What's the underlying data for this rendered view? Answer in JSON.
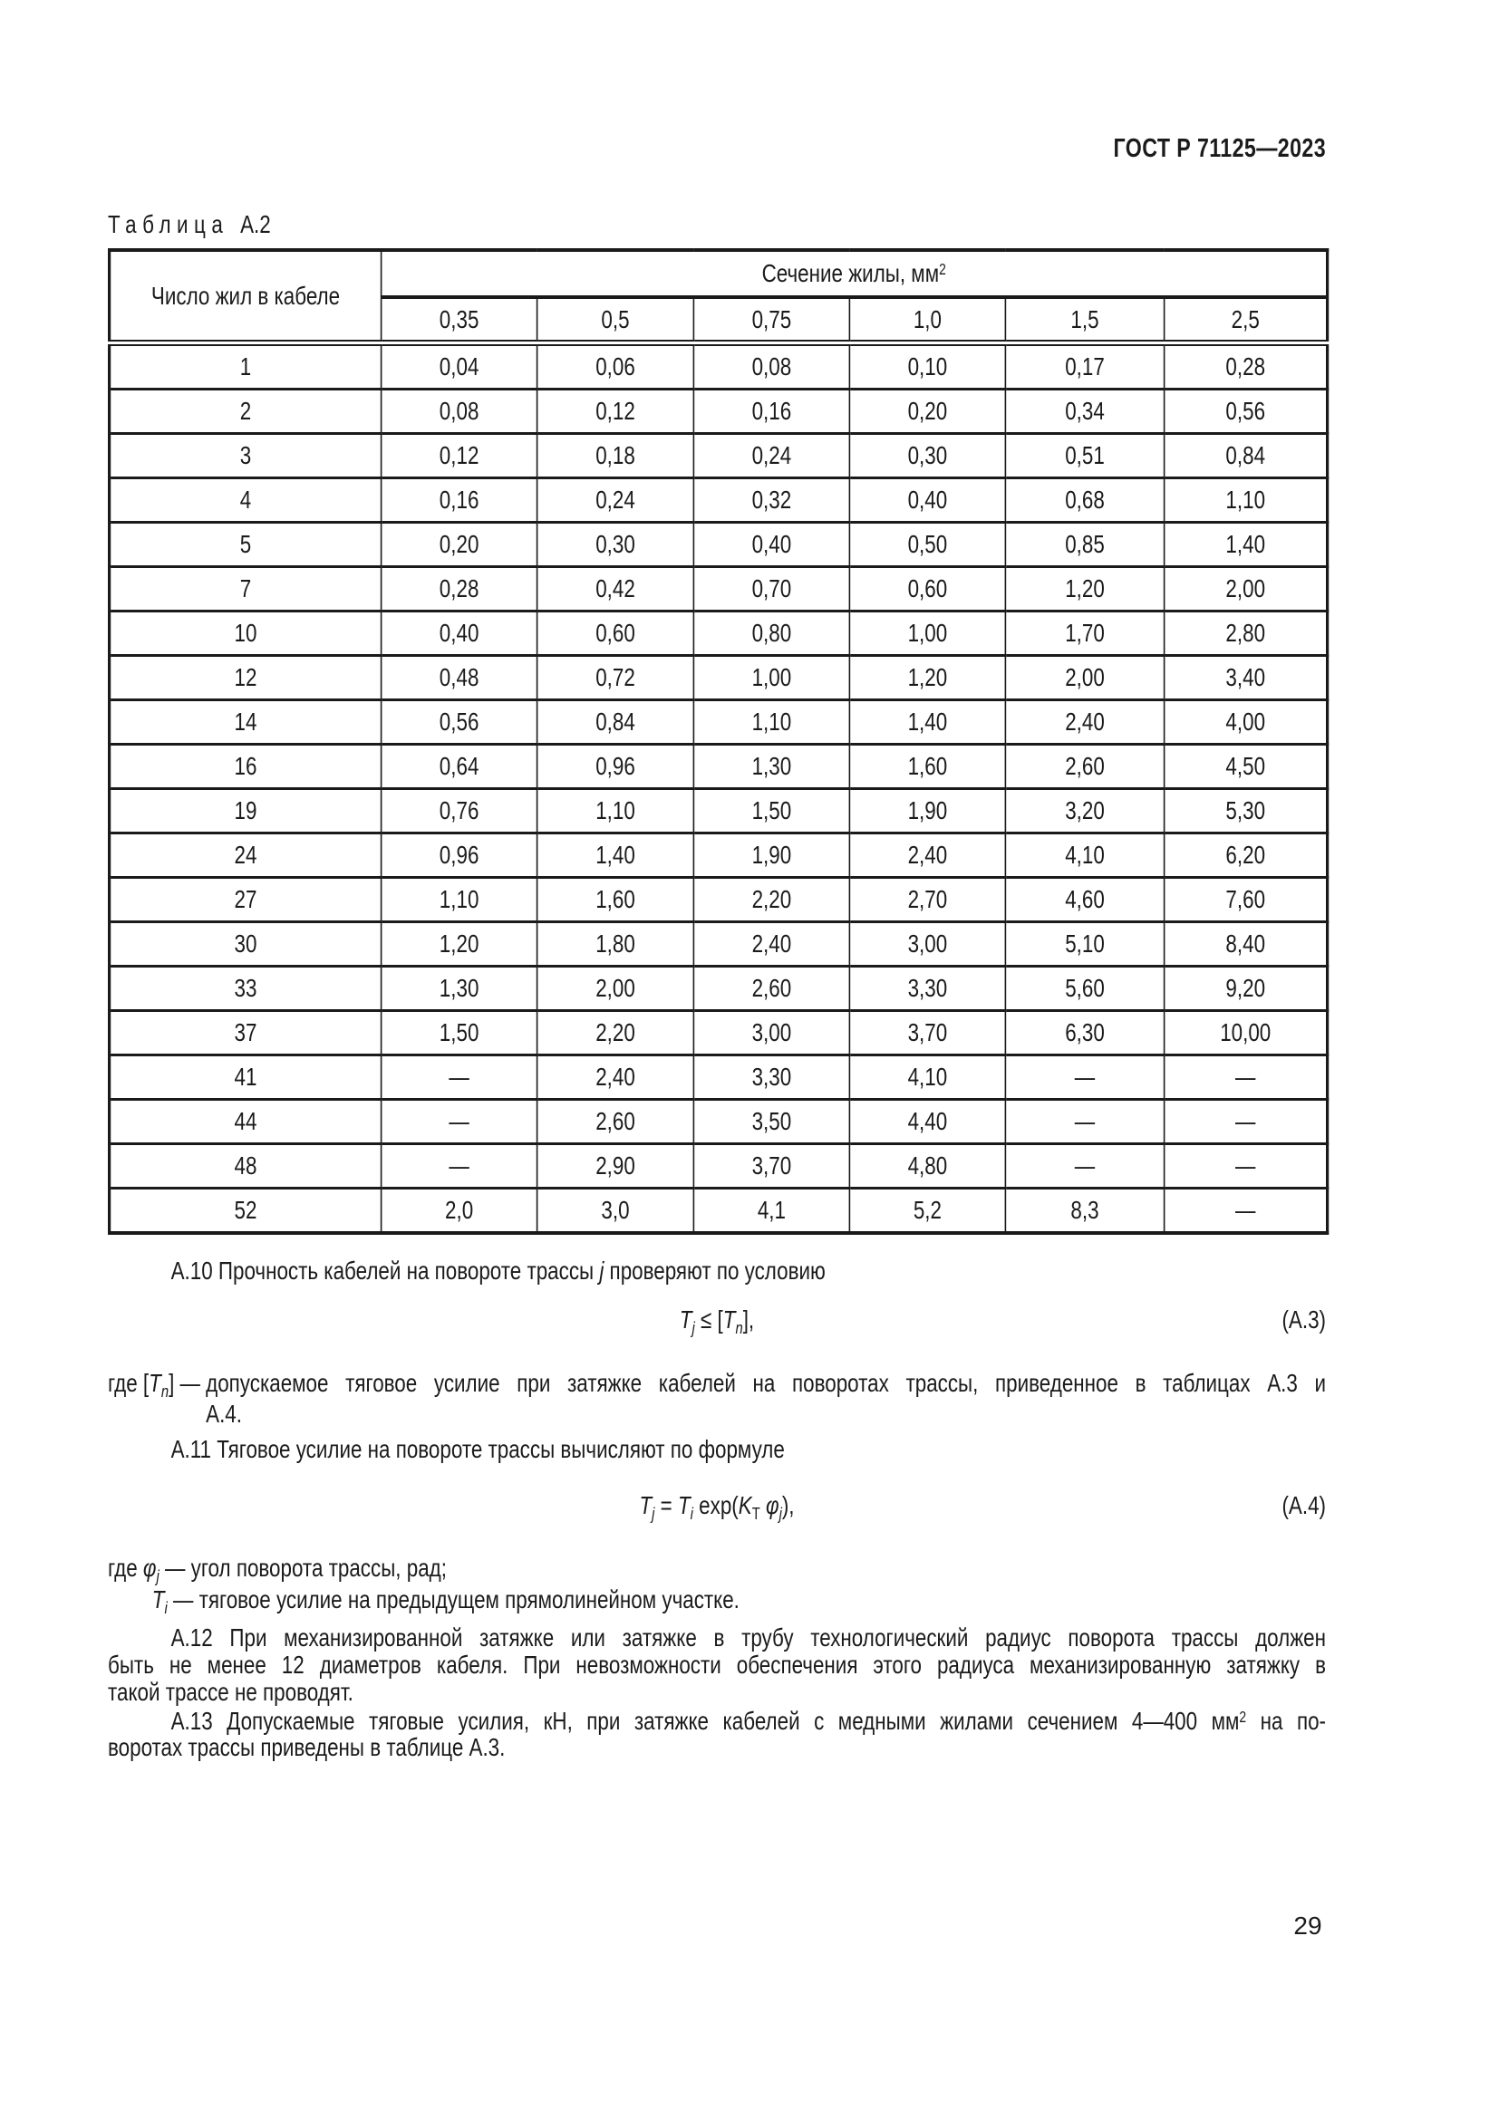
{
  "page": {
    "standard": "ГОСТ Р 71125—2023",
    "number": "29"
  },
  "table": {
    "caption_word": "Таблица",
    "caption_num": "А.2",
    "col1_header": "Число жил в кабеле",
    "span_header": "Сечение жилы, мм",
    "span_header_sup": "2",
    "columns": [
      "0,35",
      "0,5",
      "0,75",
      "1,0",
      "1,5",
      "2,5"
    ],
    "rows": [
      [
        "1",
        "0,04",
        "0,06",
        "0,08",
        "0,10",
        "0,17",
        "0,28"
      ],
      [
        "2",
        "0,08",
        "0,12",
        "0,16",
        "0,20",
        "0,34",
        "0,56"
      ],
      [
        "3",
        "0,12",
        "0,18",
        "0,24",
        "0,30",
        "0,51",
        "0,84"
      ],
      [
        "4",
        "0,16",
        "0,24",
        "0,32",
        "0,40",
        "0,68",
        "1,10"
      ],
      [
        "5",
        "0,20",
        "0,30",
        "0,40",
        "0,50",
        "0,85",
        "1,40"
      ],
      [
        "7",
        "0,28",
        "0,42",
        "0,70",
        "0,60",
        "1,20",
        "2,00"
      ],
      [
        "10",
        "0,40",
        "0,60",
        "0,80",
        "1,00",
        "1,70",
        "2,80"
      ],
      [
        "12",
        "0,48",
        "0,72",
        "1,00",
        "1,20",
        "2,00",
        "3,40"
      ],
      [
        "14",
        "0,56",
        "0,84",
        "1,10",
        "1,40",
        "2,40",
        "4,00"
      ],
      [
        "16",
        "0,64",
        "0,96",
        "1,30",
        "1,60",
        "2,60",
        "4,50"
      ],
      [
        "19",
        "0,76",
        "1,10",
        "1,50",
        "1,90",
        "3,20",
        "5,30"
      ],
      [
        "24",
        "0,96",
        "1,40",
        "1,90",
        "2,40",
        "4,10",
        "6,20"
      ],
      [
        "27",
        "1,10",
        "1,60",
        "2,20",
        "2,70",
        "4,60",
        "7,60"
      ],
      [
        "30",
        "1,20",
        "1,80",
        "2,40",
        "3,00",
        "5,10",
        "8,40"
      ],
      [
        "33",
        "1,30",
        "2,00",
        "2,60",
        "3,30",
        "5,60",
        "9,20"
      ],
      [
        "37",
        "1,50",
        "2,20",
        "3,00",
        "3,70",
        "6,30",
        "10,00"
      ],
      [
        "41",
        "—",
        "2,40",
        "3,30",
        "4,10",
        "—",
        "—"
      ],
      [
        "44",
        "—",
        "2,60",
        "3,50",
        "4,40",
        "—",
        "—"
      ],
      [
        "48",
        "—",
        "2,90",
        "3,70",
        "4,80",
        "—",
        "—"
      ],
      [
        "52",
        "2,0",
        "3,0",
        "4,1",
        "5,2",
        "8,3",
        "—"
      ]
    ]
  },
  "paragraphs": {
    "a10": {
      "pre": "А.10 Прочность кабелей на повороте трассы ",
      "var": "j",
      "post": " проверяют по условию"
    },
    "a11": "А.11 Тяговое усилие на повороте трассы вычисляют по формуле",
    "a12_lines": [
      "А.12 При механизированной затяжке или затяжке в трубу технологический радиус поворота трассы должен",
      "быть не менее 12 диаметров кабеля. При невозможности обеспечения этого радиуса механизированную затяжку в",
      "такой трассе не проводят."
    ],
    "a13": {
      "l1_pre": "А.13 Допускаемые тяговые усилия, кН, при затяжке кабелей с медными жилами сечением 4—400 мм",
      "l1_sup": "2",
      "l1_post": " на по-",
      "l2": "воротах трассы приведены в таблице А.3."
    }
  },
  "formulas": {
    "a3": {
      "lhs": "T",
      "lhs_sub": "j",
      "op": " ≤ [",
      "rhs": "T",
      "rhs_sub": "n",
      "tail": "],",
      "label": "(А.3)"
    },
    "a4": {
      "lhs": "T",
      "lhs_sub": "j",
      "eq": " = ",
      "rhs": "T",
      "rhs_sub": "i",
      "exp": " exp(",
      "k": "K",
      "k_sub": "Т",
      "phi": " φ",
      "phi_sub": "j",
      "tail": "),",
      "label": "(А.4)"
    }
  },
  "where_a3": {
    "lead1": "где [",
    "var": "T",
    "sub": "n",
    "lead2": "] — ",
    "line1": "допускаемое тяговое усилие при затяжке кабелей на поворотах трассы, приведенное в таблицах А.3 и",
    "line2": "А.4."
  },
  "where_a4": {
    "l1_lead": "где ",
    "l1_var": "φ",
    "l1_sub": "j",
    "l1_dash": " — ",
    "l1_text": "угол поворота трассы, рад;",
    "l2_var": "T",
    "l2_sub": "i",
    "l2_dash": " — ",
    "l2_text": "тяговое усилие на предыдущем прямолинейном участке."
  }
}
